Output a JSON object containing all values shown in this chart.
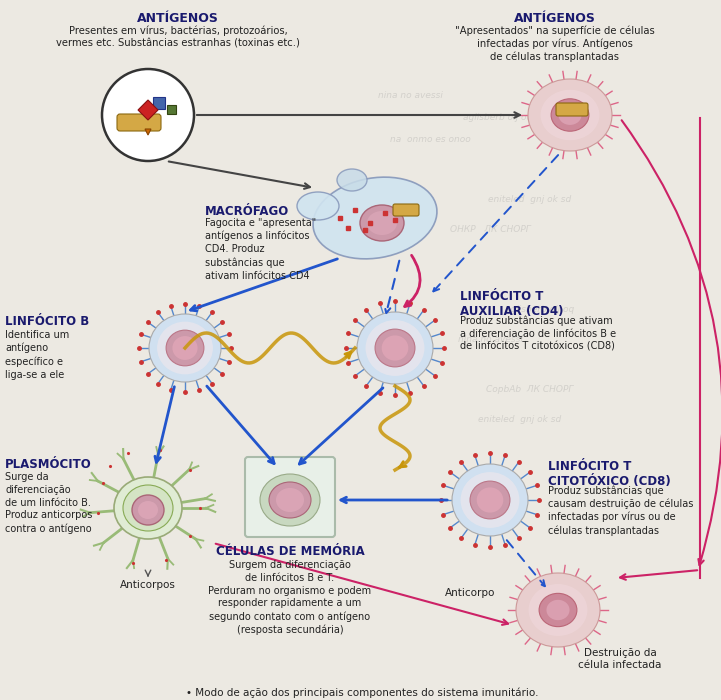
{
  "bg_color": "#ece9e2",
  "text_dark": "#1a1a6e",
  "text_body": "#222222",
  "arrow_blue": "#2255cc",
  "arrow_pink": "#cc2266",
  "arrow_gold": "#c8960a",
  "arrow_dark": "#444444",
  "antigen_left_title": "ANTÍGENOS",
  "antigen_left_text": "Presentes em vírus, bactérias, protozoários,\nvermes etc. Substâncias estranhas (toxinas etc.)",
  "antigen_right_title": "ANTÍGENOS",
  "antigen_right_text": "\"Apresentados\" na superfície de células\ninfectadas por vírus. Antígenos\nde células transplantadas",
  "macrofago_title": "MACRÓFAGO",
  "macrofago_text": "Fagocita e \"apresenta\"\nantígenos a linfócitos\nCD4. Produz\nsubstâncias que\nativam linfócitos CD4",
  "linfb_title": "LINFÓCITO B",
  "linfb_text": "Identifica um\nantígeno\nespecífico e\nliga-se a ele",
  "linftaux_title": "LINFÓCITO T\nAUXILIAR (CD4)",
  "linftaux_text": "Produz substâncias que ativam\na diferenciação de linfócitos B e\nde linfócitos T citotóxicos (CD8)",
  "linftcit_title": "LINFÓCITO T\nCITOTÓXICO (CD8)",
  "linftcit_text": "Produz substâncias que\ncausam destruição de células\ninfectadas por vírus ou de\ncélulas transplantadas",
  "plasmocito_title": "PLASMÓCITO",
  "plasmocito_text": "Surge da\ndiferenciação\nde um linfócito B.\nProduz anticorpos\ncontra o antígeno",
  "celulas_mem_title": "CÉLULAS DE MEMÓRIA",
  "celulas_mem_text": "Surgem da diferenciação\nde linfócitos B e T.\nPerduram no organismo e podem\nresponder rapidamente a um\nsegundo contato com o antígeno\n(resposta secundária)",
  "anticorpos_lbl": "Anticorpos",
  "anticorpo_lbl": "Anticorpo",
  "destruicao_lbl": "Destruição da\ncélula infectada",
  "footer": "• Modo de ação dos principais componentes do sistema imunitário."
}
